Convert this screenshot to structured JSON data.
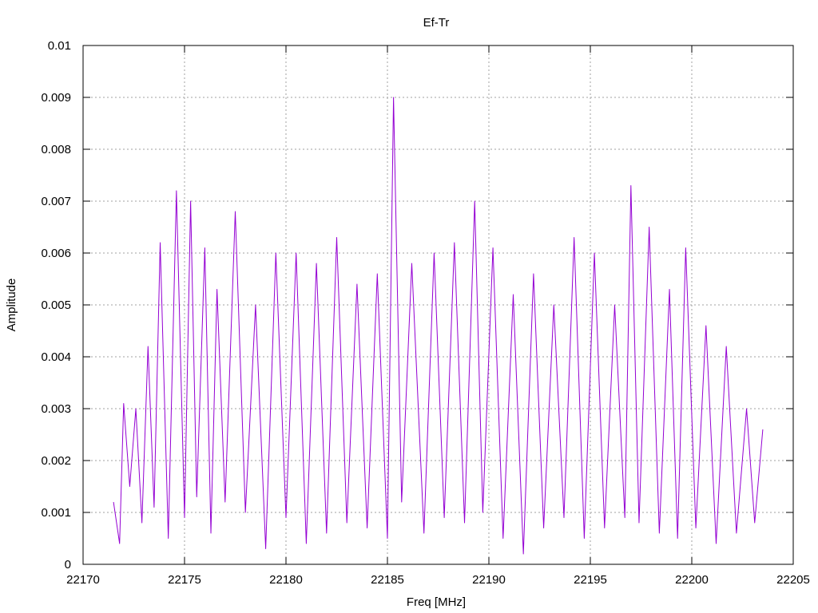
{
  "chart_data": {
    "type": "line",
    "title": "Ef-Tr",
    "xlabel": "Freq [MHz]",
    "ylabel": "Amplitude",
    "xlim": [
      22170,
      22205
    ],
    "ylim": [
      0,
      0.01
    ],
    "x_ticks": [
      22170,
      22175,
      22180,
      22185,
      22190,
      22195,
      22200,
      22205
    ],
    "x_tick_labels": [
      "22170",
      "22175",
      "22180",
      "22185",
      "22190",
      "22195",
      "22200",
      "22205"
    ],
    "y_ticks": [
      0,
      0.001,
      0.002,
      0.003,
      0.004,
      0.005,
      0.006,
      0.007,
      0.008,
      0.009,
      0.01
    ],
    "y_tick_labels": [
      "0",
      "0.001",
      "0.002",
      "0.003",
      "0.004",
      "0.005",
      "0.006",
      "0.007",
      "0.008",
      "0.009",
      "0.01"
    ],
    "grid": true,
    "series": [
      {
        "color": "#9400d3",
        "x": [
          22171.5,
          22171.8,
          22172.0,
          22172.3,
          22172.6,
          22172.9,
          22173.2,
          22173.5,
          22173.8,
          22174.2,
          22174.6,
          22175.0,
          22175.3,
          22175.6,
          22176.0,
          22176.3,
          22176.6,
          22177.0,
          22177.5,
          22178.0,
          22178.5,
          22179.0,
          22179.5,
          22180.0,
          22180.5,
          22181.0,
          22181.5,
          22182.0,
          22182.5,
          22183.0,
          22183.5,
          22184.0,
          22184.5,
          22185.0,
          22185.3,
          22185.7,
          22186.2,
          22186.8,
          22187.3,
          22187.8,
          22188.3,
          22188.8,
          22189.3,
          22189.7,
          22190.2,
          22190.7,
          22191.2,
          22191.7,
          22192.2,
          22192.7,
          22193.2,
          22193.7,
          22194.2,
          22194.7,
          22195.2,
          22195.7,
          22196.2,
          22196.7,
          22197.0,
          22197.4,
          22197.9,
          22198.4,
          22198.9,
          22199.3,
          22199.7,
          22200.2,
          22200.7,
          22201.2,
          22201.7,
          22202.2,
          22202.7,
          22203.1,
          22203.5
        ],
        "y": [
          0.0012,
          0.0004,
          0.0031,
          0.0015,
          0.003,
          0.0008,
          0.0042,
          0.0011,
          0.0062,
          0.0005,
          0.0072,
          0.0009,
          0.007,
          0.0013,
          0.0061,
          0.0006,
          0.0053,
          0.0012,
          0.0068,
          0.001,
          0.005,
          0.0003,
          0.006,
          0.0009,
          0.006,
          0.0004,
          0.0058,
          0.0006,
          0.0063,
          0.0008,
          0.0054,
          0.0007,
          0.0056,
          0.0005,
          0.009,
          0.0012,
          0.0058,
          0.0006,
          0.006,
          0.0009,
          0.0062,
          0.0008,
          0.007,
          0.001,
          0.0061,
          0.0005,
          0.0052,
          0.0002,
          0.0056,
          0.0007,
          0.005,
          0.0009,
          0.0063,
          0.0005,
          0.006,
          0.0007,
          0.005,
          0.0009,
          0.0073,
          0.0008,
          0.0065,
          0.0006,
          0.0053,
          0.0005,
          0.0061,
          0.0007,
          0.0046,
          0.0004,
          0.0042,
          0.0006,
          0.003,
          0.0008,
          0.0026
        ]
      }
    ]
  }
}
